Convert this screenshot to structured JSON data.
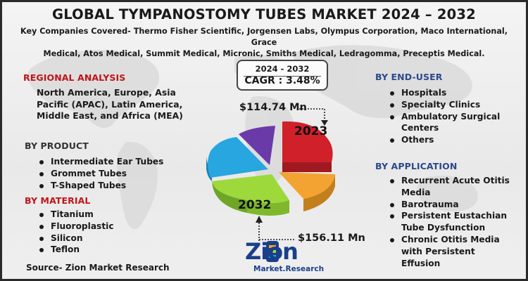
{
  "title": "GLOBAL TYMPANOSTOMY TUBES MARKET 2024 – 2032",
  "companies_line1": "Key Companies Covered- Thermo Fisher Scientific, Jorgensen Labs, Olympus Corporation, Maco International, Grace",
  "companies_line2": "Medical, Atos Medical, Summit Medical, Micronic, Smiths Medical, Ledragomma, Preceptis Medical.",
  "regional": {
    "heading": "REGIONAL ANALYSIS",
    "lines": [
      "North America, Europe, Asia",
      "Pacific (APAC), Latin America,",
      "Middle East, and Africa (MEA)"
    ]
  },
  "product": {
    "heading": "BY PRODUCT",
    "items": [
      "Intermediate Ear Tubes",
      "Grommet Tubes",
      "T-Shaped Tubes"
    ]
  },
  "material": {
    "heading": "BY MATERIAL",
    "items": [
      "Titanium",
      "Fluoroplastic",
      "Silicon",
      "Teflon"
    ]
  },
  "end_user": {
    "heading": "BY END-USER",
    "items": [
      "Hospitals",
      "Specialty Clinics",
      "Ambulatory Surgical",
      "Centers",
      "Others"
    ]
  },
  "application": {
    "heading": "BY APPLICATION",
    "items": [
      "Recurrent Acute Otitis",
      "Media",
      "Barotrauma",
      "Persistent Eustachian",
      "Tube Dysfunction",
      "Chronic Otitis Media",
      "with Persistent",
      "Effusion"
    ]
  },
  "cagr": {
    "years": "2024 - 2032",
    "value": "CAGR : 3.48%"
  },
  "market_2023": {
    "year": "2023",
    "value": "$114.74 Mn"
  },
  "market_2032": {
    "year": "2032",
    "value": "$156.11 Mn"
  },
  "source": "Source- Zion Market Research",
  "logo": {
    "main": "Zion",
    "sub": "Market.Research"
  },
  "colors": {
    "red_heading": "#c0141a",
    "blue_heading": "#2b4a8c",
    "pie_red": "#d0212a",
    "pie_orange": "#f3a331",
    "pie_green": "#9ed93c",
    "pie_blue": "#27a6e0",
    "pie_purple": "#6a3aa8"
  }
}
